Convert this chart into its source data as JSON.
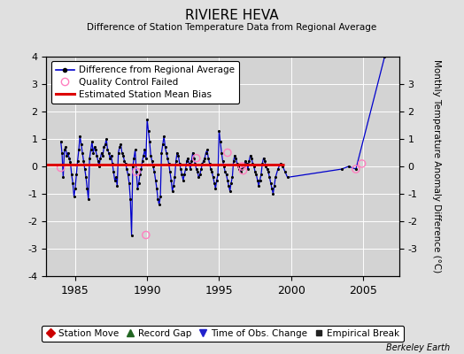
{
  "title": "RIVIERE HEVA",
  "subtitle": "Difference of Station Temperature Data from Regional Average",
  "ylabel_right": "Monthly Temperature Anomaly Difference (°C)",
  "watermark": "Berkeley Earth",
  "xlim": [
    1983.0,
    2007.5
  ],
  "ylim": [
    -4,
    4
  ],
  "yticks_left": [
    -4,
    -3,
    -2,
    -1,
    0,
    1,
    2,
    3,
    4
  ],
  "yticks_right": [
    -3,
    -2,
    -1,
    0,
    1,
    2,
    3
  ],
  "xticks": [
    1985,
    1990,
    1995,
    2000,
    2005
  ],
  "bias_line_y": 0.05,
  "bias_color": "#dd0000",
  "bias_x_start": 1983.0,
  "bias_x_end": 1999.5,
  "line_color": "#0000cc",
  "dot_color": "#000000",
  "qc_color": "#ff80c0",
  "background_color": "#e0e0e0",
  "plot_bg_color": "#d3d3d3",
  "grid_color": "#ffffff",
  "legend1_entries": [
    "Difference from Regional Average",
    "Quality Control Failed",
    "Estimated Station Mean Bias"
  ],
  "legend2_entries": [
    "Station Move",
    "Record Gap",
    "Time of Obs. Change",
    "Empirical Break"
  ],
  "data_x": [
    1984.0,
    1984.083,
    1984.167,
    1984.25,
    1984.333,
    1984.417,
    1984.5,
    1984.583,
    1984.667,
    1984.75,
    1984.833,
    1984.917,
    1985.0,
    1985.083,
    1985.167,
    1985.25,
    1985.333,
    1985.417,
    1985.5,
    1985.583,
    1985.667,
    1985.75,
    1985.833,
    1985.917,
    1986.0,
    1986.083,
    1986.167,
    1986.25,
    1986.333,
    1986.417,
    1986.5,
    1986.583,
    1986.667,
    1986.75,
    1986.833,
    1986.917,
    1987.0,
    1987.083,
    1987.167,
    1987.25,
    1987.333,
    1987.417,
    1987.5,
    1987.583,
    1987.667,
    1987.75,
    1987.833,
    1987.917,
    1988.0,
    1988.083,
    1988.167,
    1988.25,
    1988.333,
    1988.417,
    1988.5,
    1988.583,
    1988.667,
    1988.75,
    1988.833,
    1988.917,
    1989.0,
    1989.083,
    1989.167,
    1989.25,
    1989.333,
    1989.417,
    1989.5,
    1989.583,
    1989.667,
    1989.75,
    1989.833,
    1989.917,
    1990.0,
    1990.083,
    1990.167,
    1990.25,
    1990.333,
    1990.417,
    1990.5,
    1990.583,
    1990.667,
    1990.75,
    1990.833,
    1990.917,
    1991.0,
    1991.083,
    1991.167,
    1991.25,
    1991.333,
    1991.417,
    1991.5,
    1991.583,
    1991.667,
    1991.75,
    1991.833,
    1991.917,
    1992.0,
    1992.083,
    1992.167,
    1992.25,
    1992.333,
    1992.417,
    1992.5,
    1992.583,
    1992.667,
    1992.75,
    1992.833,
    1992.917,
    1993.0,
    1993.083,
    1993.167,
    1993.25,
    1993.333,
    1993.417,
    1993.5,
    1993.583,
    1993.667,
    1993.75,
    1993.833,
    1993.917,
    1994.0,
    1994.083,
    1994.167,
    1994.25,
    1994.333,
    1994.417,
    1994.5,
    1994.583,
    1994.667,
    1994.75,
    1994.833,
    1994.917,
    1995.0,
    1995.083,
    1995.167,
    1995.25,
    1995.333,
    1995.417,
    1995.5,
    1995.583,
    1995.667,
    1995.75,
    1995.833,
    1995.917,
    1996.0,
    1996.083,
    1996.167,
    1996.25,
    1996.333,
    1996.417,
    1996.5,
    1996.583,
    1996.667,
    1996.75,
    1996.833,
    1996.917,
    1997.0,
    1997.083,
    1997.167,
    1997.25,
    1997.333,
    1997.417,
    1997.5,
    1997.583,
    1997.667,
    1997.75,
    1997.833,
    1997.917,
    1998.0,
    1998.083,
    1998.167,
    1998.25,
    1998.333,
    1998.417,
    1998.5,
    1998.583,
    1998.667,
    1998.75,
    1998.833,
    1998.917,
    1999.083,
    1999.25,
    1999.417,
    1999.583,
    1999.75,
    2003.5,
    2004.0,
    2004.5,
    2006.5
  ],
  "data_y": [
    0.9,
    0.5,
    -0.4,
    0.6,
    0.7,
    0.4,
    0.5,
    0.3,
    0.15,
    -0.3,
    -0.6,
    -1.1,
    -0.8,
    -0.3,
    0.2,
    0.6,
    1.1,
    0.8,
    0.5,
    0.2,
    -0.1,
    -0.4,
    -0.8,
    -1.2,
    0.3,
    0.6,
    0.9,
    0.5,
    0.7,
    0.6,
    0.4,
    0.2,
    0.0,
    0.3,
    0.5,
    0.4,
    0.7,
    0.8,
    1.0,
    0.6,
    0.5,
    0.3,
    0.4,
    0.1,
    -0.2,
    -0.5,
    -0.4,
    -0.7,
    0.5,
    0.7,
    0.8,
    0.5,
    0.4,
    0.2,
    0.1,
    -0.1,
    -0.3,
    -0.6,
    -1.2,
    -2.5,
    0.0,
    0.3,
    0.6,
    -0.2,
    -0.8,
    -0.6,
    -0.3,
    -0.1,
    0.2,
    0.4,
    0.6,
    0.3,
    1.7,
    1.3,
    0.9,
    0.4,
    0.2,
    0.0,
    -0.2,
    -0.5,
    -0.8,
    -1.2,
    -1.4,
    -1.1,
    0.5,
    0.8,
    1.1,
    0.7,
    0.5,
    0.3,
    0.1,
    -0.2,
    -0.5,
    -0.9,
    -0.7,
    -0.4,
    0.2,
    0.5,
    0.4,
    0.1,
    -0.1,
    -0.3,
    -0.5,
    -0.3,
    -0.1,
    0.2,
    0.3,
    0.1,
    -0.1,
    0.2,
    0.5,
    0.3,
    0.1,
    -0.1,
    -0.2,
    -0.4,
    -0.3,
    -0.1,
    0.1,
    0.2,
    0.3,
    0.5,
    0.6,
    0.3,
    0.1,
    -0.1,
    -0.2,
    -0.4,
    -0.6,
    -0.8,
    -0.5,
    -0.3,
    1.3,
    0.9,
    0.5,
    0.2,
    0.0,
    -0.2,
    -0.3,
    -0.5,
    -0.7,
    -0.9,
    -0.6,
    -0.4,
    0.2,
    0.4,
    0.3,
    0.1,
    0.0,
    -0.1,
    -0.2,
    -0.1,
    0.0,
    0.1,
    0.2,
    0.1,
    -0.1,
    0.2,
    0.4,
    0.3,
    0.1,
    0.0,
    -0.2,
    -0.3,
    -0.5,
    -0.7,
    -0.5,
    -0.3,
    0.1,
    0.3,
    0.2,
    0.0,
    -0.1,
    -0.2,
    -0.4,
    -0.6,
    -0.8,
    -1.0,
    -0.7,
    -0.4,
    -0.1,
    0.1,
    0.0,
    -0.2,
    -0.4,
    -0.1,
    0.0,
    -0.1,
    4.0
  ],
  "qc_x": [
    1984.0,
    1989.25,
    1989.917,
    1993.417,
    1995.583,
    1996.583,
    1996.667,
    2004.5,
    2004.917
  ],
  "qc_y": [
    -0.05,
    -0.2,
    -2.5,
    0.3,
    0.5,
    0.0,
    -0.15,
    -0.1,
    0.1
  ]
}
